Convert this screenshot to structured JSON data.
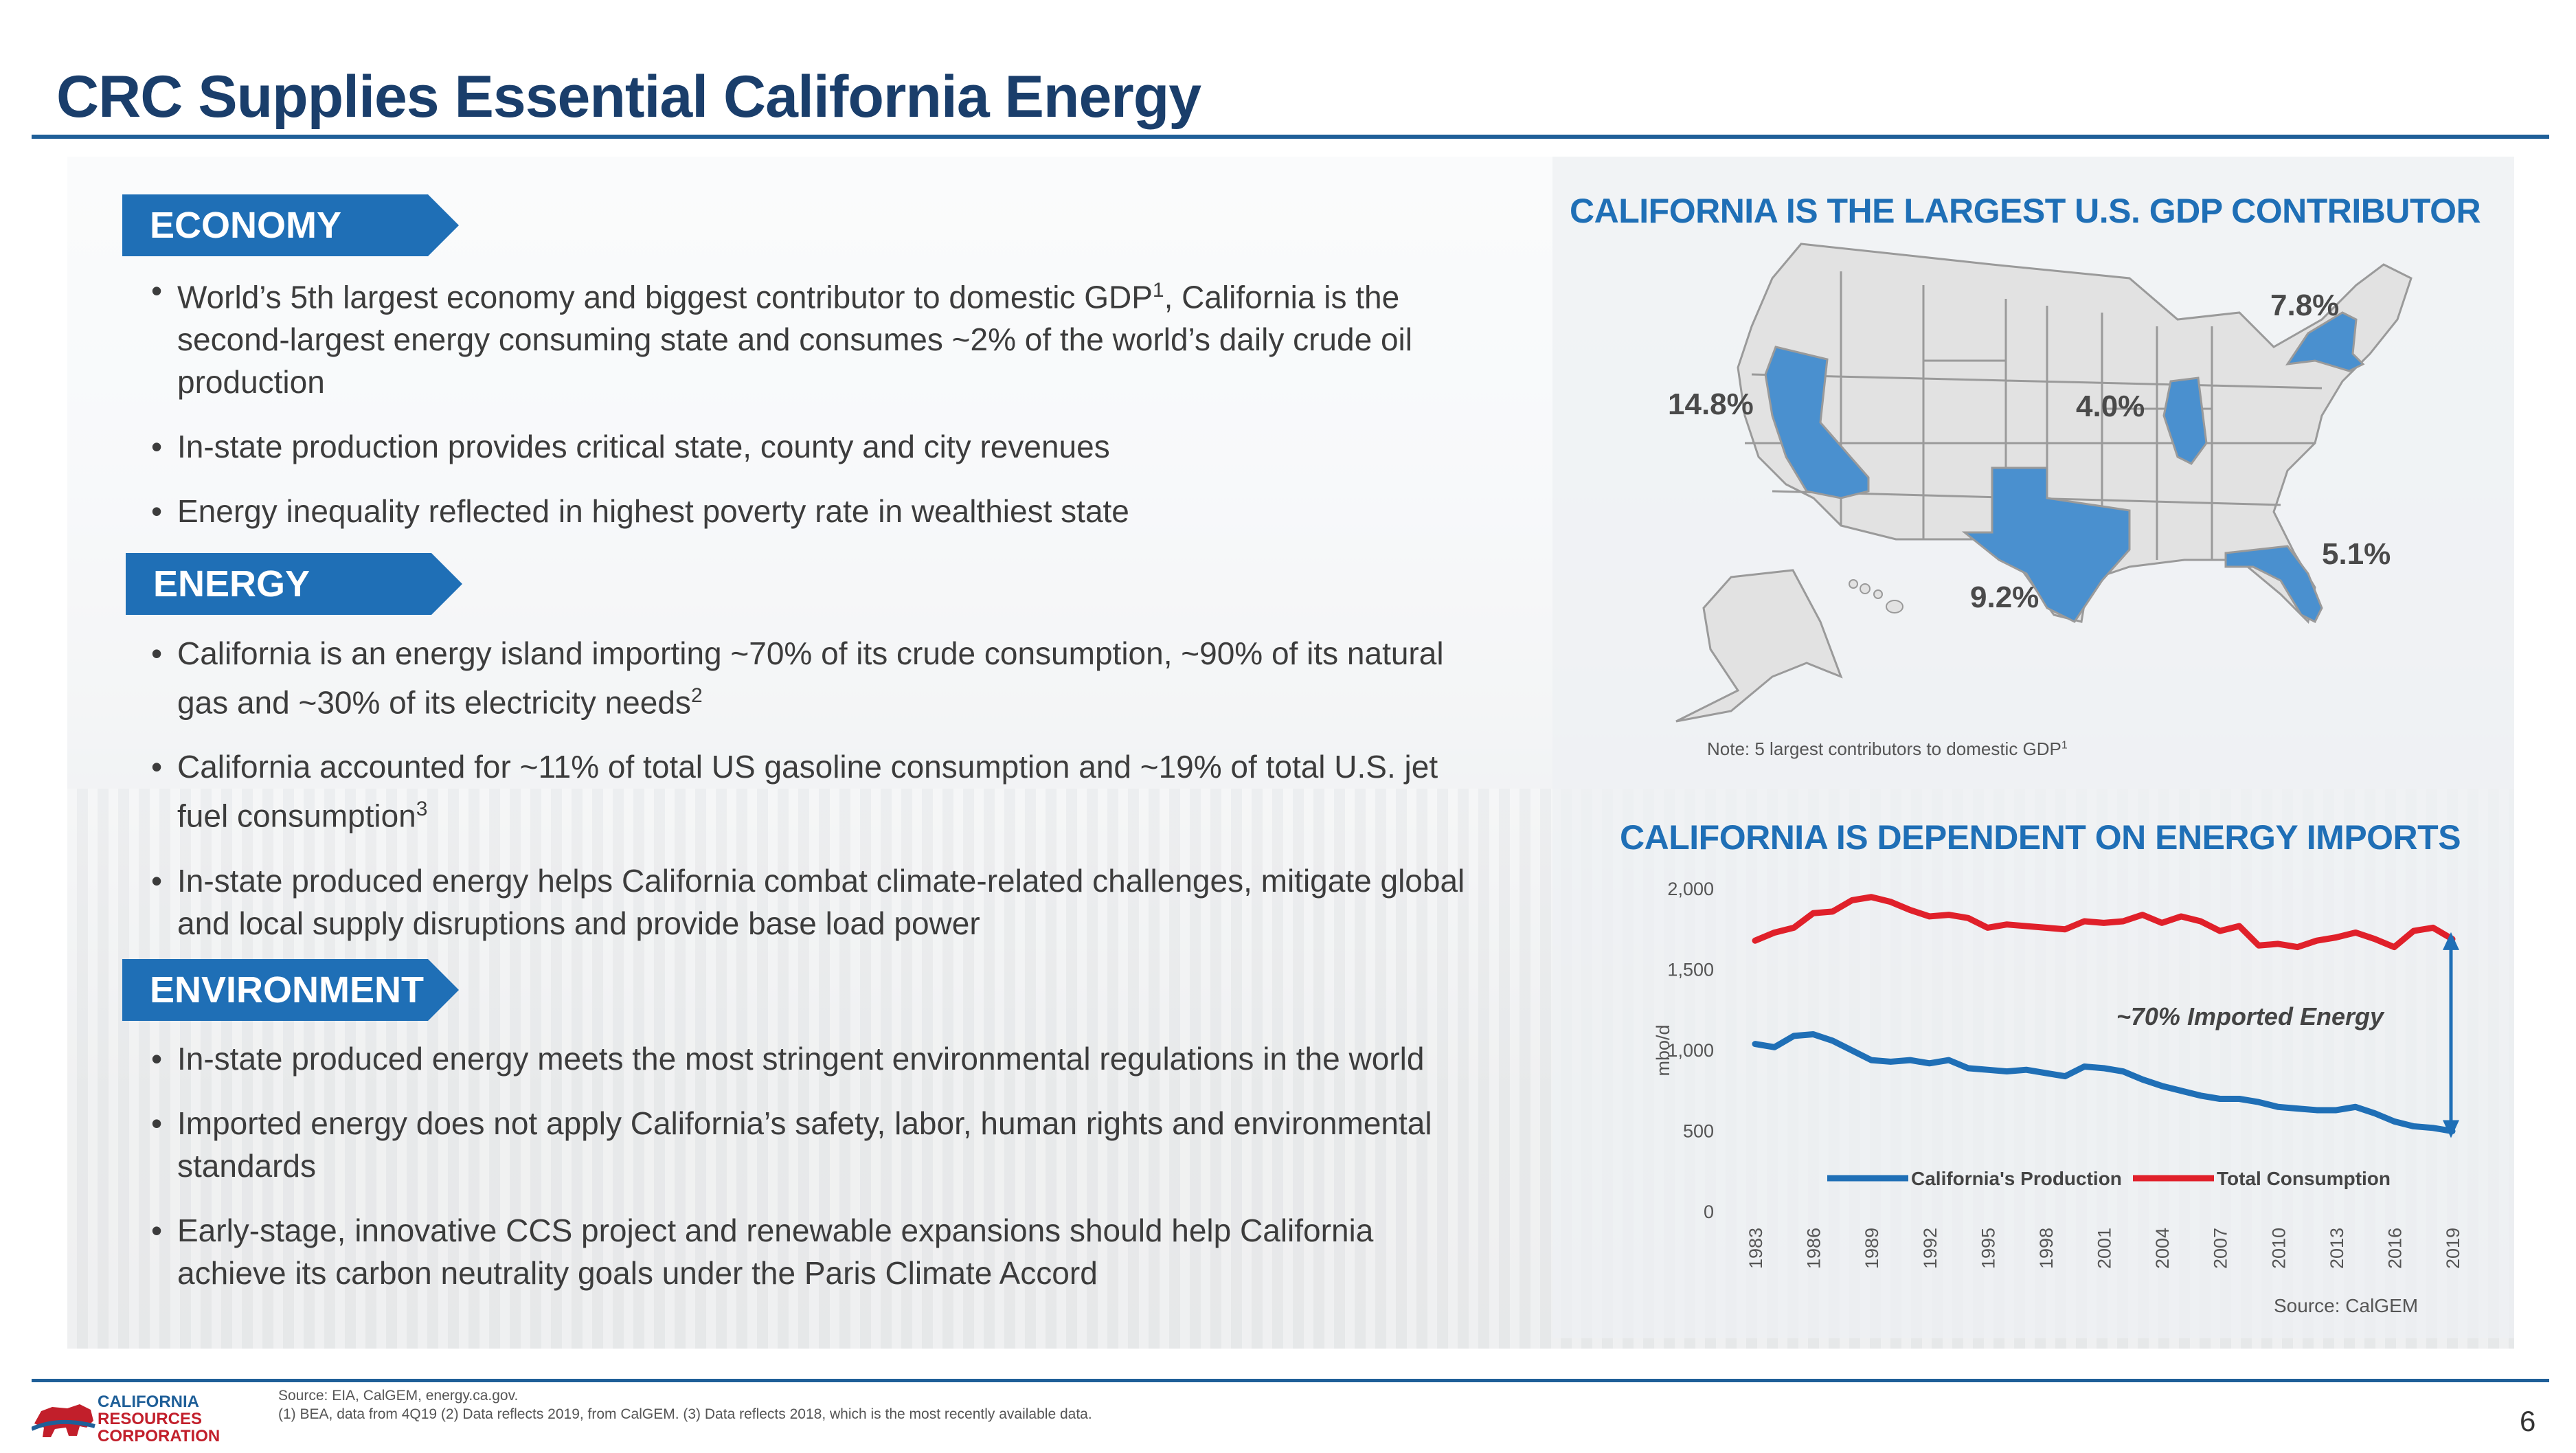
{
  "title": "CRC Supplies Essential California Energy",
  "sections": [
    {
      "label": "ECONOMY",
      "bullets": [
        [
          "World’s 5th largest economy and biggest contributor to domestic GDP",
          "1",
          ", California is the second-largest energy consuming state and consumes ~2% of the world’s daily crude oil production"
        ],
        [
          "In-state production provides critical state, county and city revenues",
          "",
          ""
        ],
        [
          "Energy inequality reflected in highest poverty rate in wealthiest state",
          "",
          ""
        ]
      ]
    },
    {
      "label": "ENERGY",
      "bullets": [
        [
          "California is an energy island importing ~70% of its crude consumption, ~90% of its natural gas and ~30% of its electricity needs",
          "2",
          ""
        ],
        [
          "California accounted for ~11% of total US gasoline consumption and ~19% of total U.S. jet fuel consumption",
          "3",
          ""
        ],
        [
          "In-state produced energy helps California combat climate-related challenges, mitigate global and local supply disruptions and provide base load power",
          "",
          ""
        ]
      ]
    },
    {
      "label": "ENVIRONMENT",
      "bullets": [
        [
          "In-state produced energy meets the most stringent environmental regulations in the world",
          "",
          ""
        ],
        [
          "Imported energy does not apply California’s safety, labor, human rights and environmental standards",
          "",
          ""
        ],
        [
          "Early-stage, innovative CCS project and renewable expansions should help California achieve its carbon neutrality goals under the Paris Climate Accord",
          "",
          ""
        ]
      ]
    }
  ],
  "map": {
    "title": "CALIFORNIA IS THE LARGEST U.S. GDP CONTRIBUTOR",
    "labels": {
      "california": "14.8%",
      "texas": "9.2%",
      "newyork": "7.8%",
      "florida": "5.1%",
      "illinois": "4.0%"
    },
    "note": "Note:  5 largest contributors to domestic GDP",
    "note_sup": "1",
    "colors": {
      "highlight": "#4a90cf",
      "base": "#e2e2e2",
      "border": "#9a9a9a"
    }
  },
  "chart_data": {
    "type": "line",
    "title": "CALIFORNIA IS DEPENDENT ON ENERGY IMPORTS",
    "ylabel": "mbo/d",
    "ylim": [
      0,
      2000
    ],
    "yticks": [
      "0",
      "500",
      "1,000",
      "1,500",
      "2,000"
    ],
    "x": [
      1983,
      1984,
      1985,
      1986,
      1987,
      1988,
      1989,
      1990,
      1991,
      1992,
      1993,
      1994,
      1995,
      1996,
      1997,
      1998,
      1999,
      2000,
      2001,
      2002,
      2003,
      2004,
      2005,
      2006,
      2007,
      2008,
      2009,
      2010,
      2011,
      2012,
      2013,
      2014,
      2015,
      2016,
      2017,
      2018,
      2019
    ],
    "xtick_labels": [
      "1983",
      "1986",
      "1989",
      "1992",
      "1995",
      "1998",
      "2001",
      "2004",
      "2007",
      "2010",
      "2013",
      "2016",
      "2019"
    ],
    "series": [
      {
        "name": "California's Production",
        "color": "#1f6fb6",
        "values": [
          1040,
          1020,
          1090,
          1100,
          1060,
          1000,
          940,
          930,
          940,
          920,
          940,
          890,
          880,
          870,
          880,
          860,
          840,
          900,
          890,
          870,
          820,
          780,
          750,
          720,
          700,
          700,
          680,
          650,
          640,
          630,
          630,
          650,
          610,
          560,
          530,
          520,
          500
        ]
      },
      {
        "name": "Total Consumption",
        "color": "#e0202a",
        "values": [
          1680,
          1730,
          1760,
          1850,
          1860,
          1930,
          1950,
          1920,
          1870,
          1830,
          1840,
          1820,
          1760,
          1780,
          1770,
          1760,
          1750,
          1800,
          1790,
          1800,
          1840,
          1790,
          1830,
          1800,
          1740,
          1770,
          1650,
          1660,
          1640,
          1680,
          1700,
          1730,
          1690,
          1640,
          1740,
          1760,
          1690
        ]
      }
    ],
    "annotation": "~70% Imported Energy",
    "legend_position": "bottom",
    "source": "Source: CalGEM"
  },
  "footer": {
    "source_line": "Source: EIA, CalGEM, energy.ca.gov.",
    "notes_line": "(1) BEA, data from 4Q19 (2) Data reflects 2019, from CalGEM. (3) Data reflects 2018, which is the most recently available data.",
    "logo_lines": [
      "CALIFORNIA",
      "RESOURCES",
      "CORPORATION"
    ],
    "page_number": "6"
  }
}
